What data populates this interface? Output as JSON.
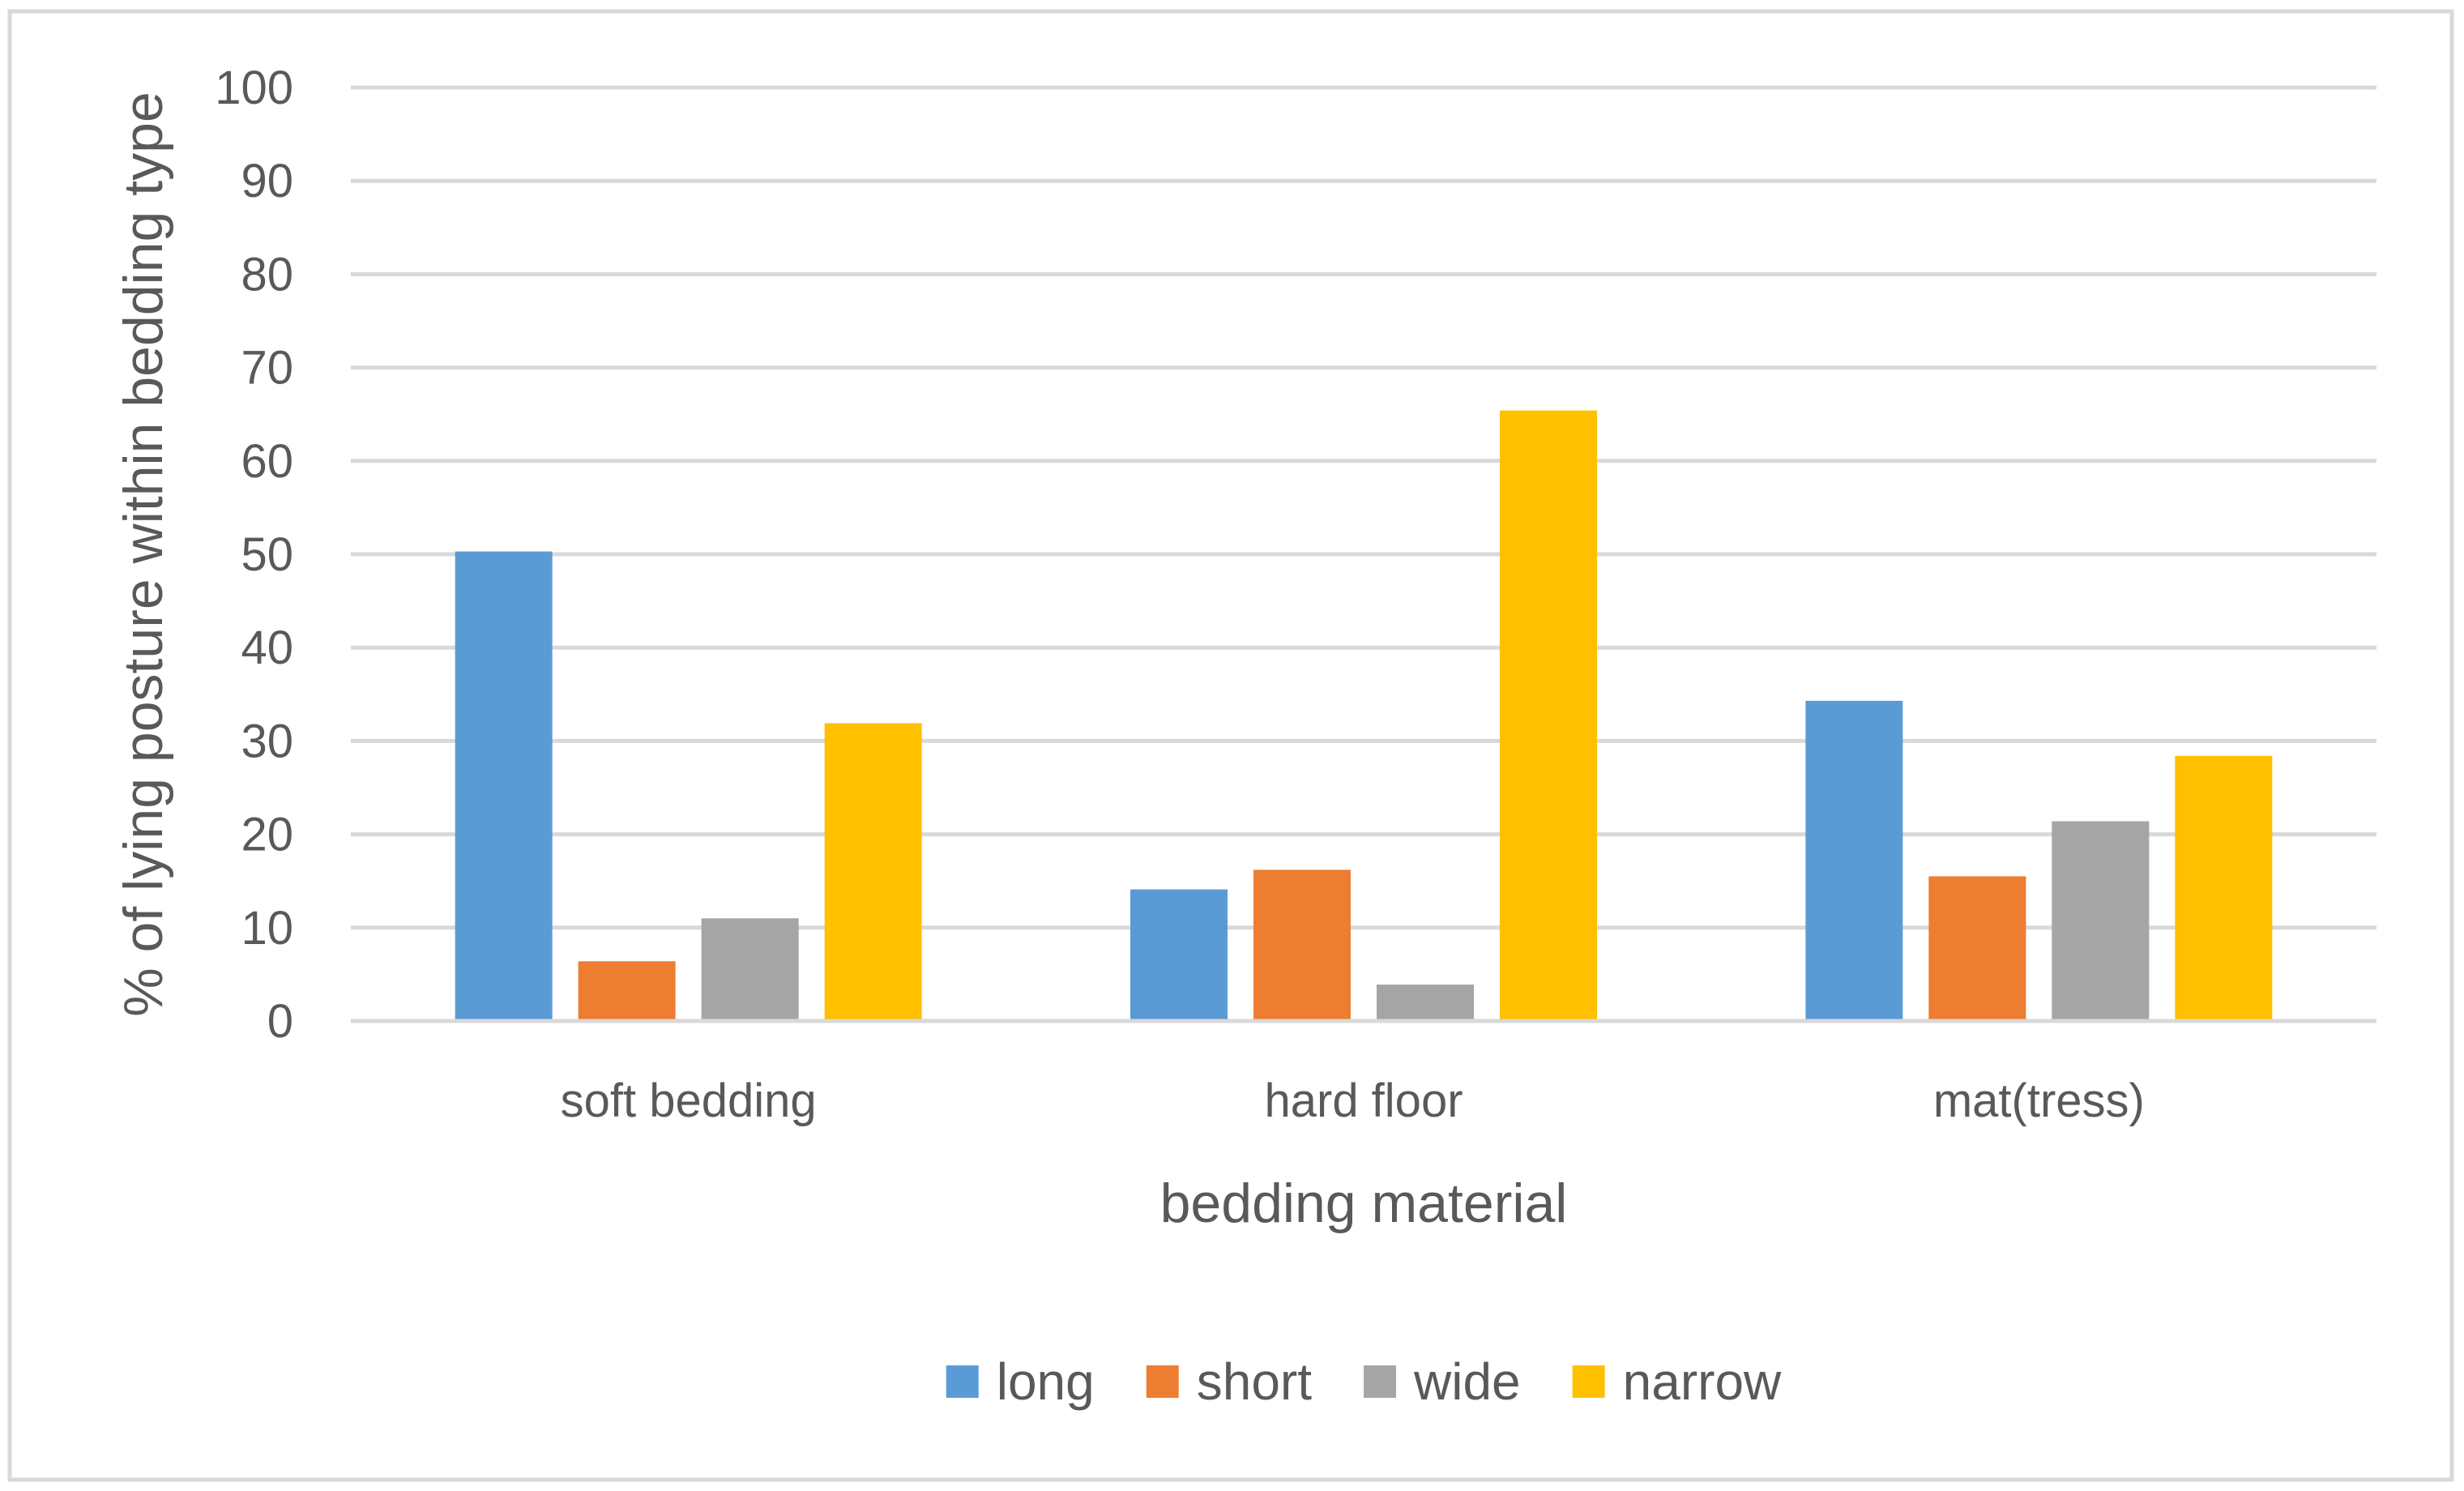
{
  "chart_data": {
    "type": "bar",
    "title": "",
    "xlabel": "bedding material",
    "ylabel": "% of lying posture within bedding type",
    "ylim": [
      0,
      100
    ],
    "yticks": [
      "0",
      "10",
      "20",
      "30",
      "40",
      "50",
      "60",
      "70",
      "80",
      "90",
      "100"
    ],
    "categories": [
      "soft bedding",
      "hard floor",
      "mat(tress)"
    ],
    "series": [
      {
        "name": "long",
        "color": "#5b9bd5",
        "values": [
          50.3,
          14.1,
          34.3
        ]
      },
      {
        "name": "short",
        "color": "#ed7d31",
        "values": [
          6.4,
          16.2,
          15.5
        ]
      },
      {
        "name": "wide",
        "color": "#a5a5a5",
        "values": [
          11.0,
          3.9,
          21.4
        ]
      },
      {
        "name": "narrow",
        "color": "#ffc000",
        "values": [
          31.9,
          65.4,
          28.4
        ]
      }
    ],
    "grid": true,
    "legend_position": "bottom"
  }
}
